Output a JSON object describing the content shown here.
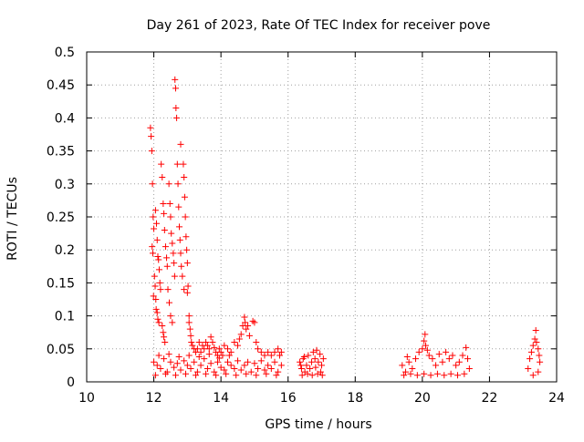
{
  "chart_data": {
    "type": "scatter",
    "title": "Day 261 of 2023, Rate Of TEC Index for receiver pove",
    "xlabel": "GPS time / hours",
    "ylabel": "ROTI / TECUs",
    "xlim": [
      10,
      24
    ],
    "ylim": [
      0,
      0.5
    ],
    "x_ticks": [
      "10",
      "12",
      "14",
      "16",
      "18",
      "20",
      "22",
      "24"
    ],
    "y_ticks": [
      "0",
      "0.05",
      "0.1",
      "0.15",
      "0.2",
      "0.25",
      "0.3",
      "0.35",
      "0.4",
      "0.45",
      "0.5"
    ],
    "grid": true,
    "legend": "none",
    "marker": "+",
    "colors": {
      "series": "#ff0000",
      "grid": "#a0a0a0",
      "axis": "#000000"
    },
    "series": [
      {
        "name": "",
        "points": [
          [
            11.9,
            0.385
          ],
          [
            11.92,
            0.372
          ],
          [
            11.94,
            0.35
          ],
          [
            11.96,
            0.3
          ],
          [
            11.98,
            0.25
          ],
          [
            12.0,
            0.232
          ],
          [
            11.95,
            0.205
          ],
          [
            11.97,
            0.195
          ],
          [
            12.02,
            0.16
          ],
          [
            12.04,
            0.145
          ],
          [
            11.99,
            0.13
          ],
          [
            12.06,
            0.125
          ],
          [
            12.05,
            0.26
          ],
          [
            12.08,
            0.24
          ],
          [
            12.1,
            0.215
          ],
          [
            12.12,
            0.19
          ],
          [
            12.14,
            0.185
          ],
          [
            12.16,
            0.17
          ],
          [
            12.18,
            0.15
          ],
          [
            12.2,
            0.14
          ],
          [
            12.07,
            0.11
          ],
          [
            12.1,
            0.105
          ],
          [
            12.12,
            0.095
          ],
          [
            12.15,
            0.09
          ],
          [
            12.22,
            0.33
          ],
          [
            12.25,
            0.31
          ],
          [
            12.28,
            0.27
          ],
          [
            12.3,
            0.255
          ],
          [
            12.32,
            0.23
          ],
          [
            12.35,
            0.205
          ],
          [
            12.38,
            0.188
          ],
          [
            12.4,
            0.175
          ],
          [
            12.25,
            0.085
          ],
          [
            12.28,
            0.075
          ],
          [
            12.3,
            0.068
          ],
          [
            12.33,
            0.06
          ],
          [
            12.45,
            0.3
          ],
          [
            12.48,
            0.27
          ],
          [
            12.5,
            0.25
          ],
          [
            12.52,
            0.225
          ],
          [
            12.55,
            0.21
          ],
          [
            12.58,
            0.195
          ],
          [
            12.6,
            0.18
          ],
          [
            12.62,
            0.16
          ],
          [
            12.42,
            0.14
          ],
          [
            12.46,
            0.12
          ],
          [
            12.5,
            0.1
          ],
          [
            12.55,
            0.09
          ],
          [
            12.63,
            0.458
          ],
          [
            12.65,
            0.445
          ],
          [
            12.66,
            0.415
          ],
          [
            12.68,
            0.4
          ],
          [
            12.7,
            0.33
          ],
          [
            12.72,
            0.3
          ],
          [
            12.74,
            0.265
          ],
          [
            12.76,
            0.235
          ],
          [
            12.78,
            0.215
          ],
          [
            12.8,
            0.195
          ],
          [
            12.82,
            0.175
          ],
          [
            12.85,
            0.16
          ],
          [
            12.8,
            0.36
          ],
          [
            12.88,
            0.33
          ],
          [
            12.9,
            0.31
          ],
          [
            12.92,
            0.28
          ],
          [
            12.94,
            0.25
          ],
          [
            12.96,
            0.22
          ],
          [
            12.98,
            0.2
          ],
          [
            13.0,
            0.18
          ],
          [
            13.02,
            0.145
          ],
          [
            12.9,
            0.14
          ],
          [
            13.0,
            0.135
          ],
          [
            13.05,
            0.1
          ],
          [
            13.05,
            0.09
          ],
          [
            13.08,
            0.08
          ],
          [
            13.1,
            0.07
          ],
          [
            13.12,
            0.06
          ],
          [
            13.15,
            0.055
          ],
          [
            13.2,
            0.05
          ],
          [
            13.25,
            0.045
          ],
          [
            13.3,
            0.05
          ],
          [
            13.35,
            0.06
          ],
          [
            13.4,
            0.045
          ],
          [
            13.45,
            0.055
          ],
          [
            13.5,
            0.05
          ],
          [
            13.55,
            0.06
          ],
          [
            13.6,
            0.055
          ],
          [
            13.65,
            0.05
          ],
          [
            13.7,
            0.068
          ],
          [
            13.75,
            0.06
          ],
          [
            13.8,
            0.052
          ],
          [
            13.85,
            0.045
          ],
          [
            13.9,
            0.04
          ],
          [
            13.95,
            0.05
          ],
          [
            14.0,
            0.045
          ],
          [
            14.05,
            0.04
          ],
          [
            14.1,
            0.055
          ],
          [
            14.2,
            0.05
          ],
          [
            14.3,
            0.045
          ],
          [
            14.4,
            0.06
          ],
          [
            14.5,
            0.055
          ],
          [
            14.55,
            0.065
          ],
          [
            14.6,
            0.072
          ],
          [
            14.65,
            0.085
          ],
          [
            14.7,
            0.098
          ],
          [
            14.72,
            0.09
          ],
          [
            14.75,
            0.08
          ],
          [
            14.8,
            0.085
          ],
          [
            14.85,
            0.07
          ],
          [
            14.95,
            0.092
          ],
          [
            15.0,
            0.09
          ],
          [
            15.05,
            0.06
          ],
          [
            15.1,
            0.05
          ],
          [
            15.2,
            0.045
          ],
          [
            15.3,
            0.04
          ],
          [
            15.4,
            0.045
          ],
          [
            15.5,
            0.04
          ],
          [
            15.6,
            0.045
          ],
          [
            15.7,
            0.05
          ],
          [
            15.75,
            0.04
          ],
          [
            15.8,
            0.045
          ],
          [
            12.0,
            0.03
          ],
          [
            12.1,
            0.025
          ],
          [
            12.2,
            0.02
          ],
          [
            12.3,
            0.035
          ],
          [
            12.4,
            0.015
          ],
          [
            12.5,
            0.03
          ],
          [
            12.6,
            0.022
          ],
          [
            12.7,
            0.028
          ],
          [
            12.8,
            0.018
          ],
          [
            12.9,
            0.032
          ],
          [
            13.0,
            0.025
          ],
          [
            13.1,
            0.02
          ],
          [
            13.2,
            0.03
          ],
          [
            13.3,
            0.015
          ],
          [
            13.4,
            0.025
          ],
          [
            13.5,
            0.035
          ],
          [
            13.6,
            0.02
          ],
          [
            13.7,
            0.028
          ],
          [
            13.8,
            0.015
          ],
          [
            13.9,
            0.03
          ],
          [
            14.0,
            0.022
          ],
          [
            14.1,
            0.018
          ],
          [
            14.2,
            0.03
          ],
          [
            14.3,
            0.025
          ],
          [
            14.4,
            0.02
          ],
          [
            14.5,
            0.032
          ],
          [
            14.6,
            0.018
          ],
          [
            14.7,
            0.025
          ],
          [
            14.8,
            0.03
          ],
          [
            14.9,
            0.015
          ],
          [
            15.0,
            0.028
          ],
          [
            15.1,
            0.02
          ],
          [
            15.2,
            0.032
          ],
          [
            15.3,
            0.018
          ],
          [
            15.4,
            0.025
          ],
          [
            15.5,
            0.02
          ],
          [
            15.6,
            0.03
          ],
          [
            15.7,
            0.015
          ],
          [
            15.8,
            0.025
          ],
          [
            12.05,
            0.01
          ],
          [
            12.35,
            0.012
          ],
          [
            12.65,
            0.01
          ],
          [
            12.95,
            0.012
          ],
          [
            13.25,
            0.01
          ],
          [
            13.55,
            0.012
          ],
          [
            13.85,
            0.01
          ],
          [
            14.15,
            0.012
          ],
          [
            14.45,
            0.01
          ],
          [
            14.75,
            0.012
          ],
          [
            15.05,
            0.01
          ],
          [
            15.35,
            0.012
          ],
          [
            15.65,
            0.01
          ],
          [
            12.15,
            0.04
          ],
          [
            12.45,
            0.042
          ],
          [
            12.75,
            0.038
          ],
          [
            13.05,
            0.04
          ],
          [
            13.35,
            0.038
          ],
          [
            13.65,
            0.042
          ],
          [
            13.95,
            0.036
          ],
          [
            14.25,
            0.04
          ],
          [
            16.35,
            0.03
          ],
          [
            16.4,
            0.02
          ],
          [
            16.45,
            0.035
          ],
          [
            16.5,
            0.015
          ],
          [
            16.55,
            0.025
          ],
          [
            16.6,
            0.04
          ],
          [
            16.65,
            0.02
          ],
          [
            16.7,
            0.03
          ],
          [
            16.75,
            0.045
          ],
          [
            16.8,
            0.035
          ],
          [
            16.85,
            0.048
          ],
          [
            16.9,
            0.03
          ],
          [
            16.95,
            0.042
          ],
          [
            17.0,
            0.025
          ],
          [
            17.05,
            0.035
          ],
          [
            16.42,
            0.01
          ],
          [
            16.58,
            0.012
          ],
          [
            16.72,
            0.01
          ],
          [
            16.88,
            0.012
          ],
          [
            17.02,
            0.01
          ],
          [
            16.48,
            0.038
          ],
          [
            16.82,
            0.022
          ],
          [
            16.97,
            0.015
          ],
          [
            16.38,
            0.025
          ],
          [
            19.4,
            0.025
          ],
          [
            19.5,
            0.015
          ],
          [
            19.6,
            0.03
          ],
          [
            19.7,
            0.02
          ],
          [
            19.8,
            0.035
          ],
          [
            19.9,
            0.045
          ],
          [
            20.0,
            0.05
          ],
          [
            20.05,
            0.062
          ],
          [
            20.1,
            0.055
          ],
          [
            20.15,
            0.048
          ],
          [
            20.2,
            0.04
          ],
          [
            20.3,
            0.035
          ],
          [
            20.4,
            0.025
          ],
          [
            20.5,
            0.042
          ],
          [
            20.6,
            0.03
          ],
          [
            20.7,
            0.045
          ],
          [
            20.8,
            0.035
          ],
          [
            20.9,
            0.04
          ],
          [
            21.0,
            0.025
          ],
          [
            21.1,
            0.03
          ],
          [
            21.2,
            0.04
          ],
          [
            21.3,
            0.052
          ],
          [
            21.35,
            0.035
          ],
          [
            21.4,
            0.02
          ],
          [
            19.45,
            0.01
          ],
          [
            19.65,
            0.012
          ],
          [
            19.85,
            0.01
          ],
          [
            20.05,
            0.012
          ],
          [
            20.25,
            0.01
          ],
          [
            20.45,
            0.012
          ],
          [
            20.65,
            0.01
          ],
          [
            20.85,
            0.012
          ],
          [
            21.05,
            0.01
          ],
          [
            21.25,
            0.012
          ],
          [
            19.55,
            0.038
          ],
          [
            20.08,
            0.072
          ],
          [
            23.15,
            0.02
          ],
          [
            23.2,
            0.035
          ],
          [
            23.25,
            0.045
          ],
          [
            23.3,
            0.055
          ],
          [
            23.35,
            0.065
          ],
          [
            23.38,
            0.078
          ],
          [
            23.4,
            0.06
          ],
          [
            23.45,
            0.05
          ],
          [
            23.48,
            0.04
          ],
          [
            23.5,
            0.03
          ],
          [
            23.45,
            0.015
          ],
          [
            23.3,
            0.01
          ]
        ]
      }
    ]
  }
}
